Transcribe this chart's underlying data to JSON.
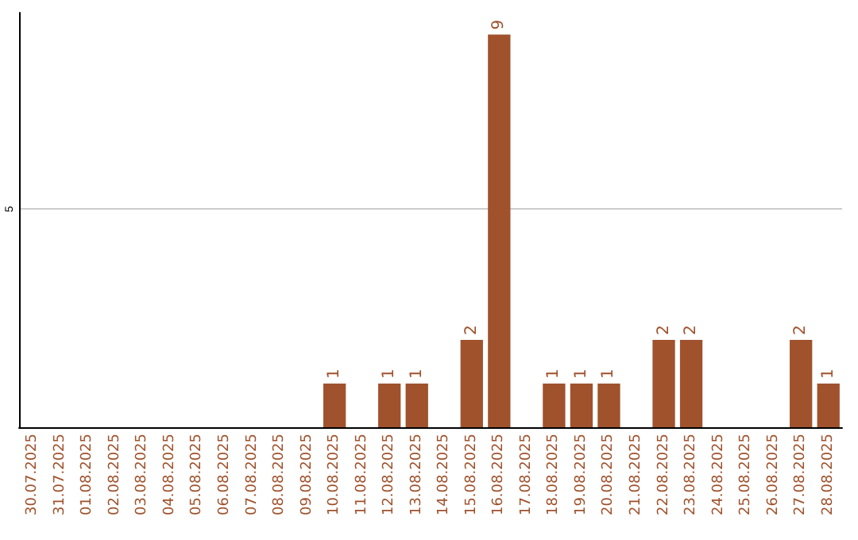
{
  "chart_data": {
    "type": "bar",
    "categories": [
      "30.07.2025",
      "31.07.2025",
      "01.08.2025",
      "02.08.2025",
      "03.08.2025",
      "04.08.2025",
      "05.08.2025",
      "06.08.2025",
      "07.08.2025",
      "08.08.2025",
      "09.08.2025",
      "10.08.2025",
      "11.08.2025",
      "12.08.2025",
      "13.08.2025",
      "14.08.2025",
      "15.08.2025",
      "16.08.2025",
      "17.08.2025",
      "18.08.2025",
      "19.08.2025",
      "20.08.2025",
      "21.08.2025",
      "22.08.2025",
      "23.08.2025",
      "24.08.2025",
      "25.08.2025",
      "26.08.2025",
      "27.08.2025",
      "28.08.2025"
    ],
    "values": [
      0,
      0,
      0,
      0,
      0,
      0,
      0,
      0,
      0,
      0,
      0,
      1,
      0,
      1,
      1,
      0,
      2,
      9,
      0,
      1,
      1,
      1,
      0,
      2,
      2,
      0,
      0,
      0,
      2,
      1
    ],
    "value_labels": [
      null,
      null,
      null,
      null,
      null,
      null,
      null,
      null,
      null,
      null,
      null,
      "1",
      null,
      "1",
      "1",
      null,
      "2",
      "9",
      null,
      "1",
      "1",
      "1",
      null,
      "2",
      "2",
      null,
      null,
      null,
      "2",
      "1"
    ],
    "color": "#a0522d",
    "ylim": [
      0,
      9.5
    ],
    "yticks": [
      5
    ],
    "grid": "y"
  }
}
